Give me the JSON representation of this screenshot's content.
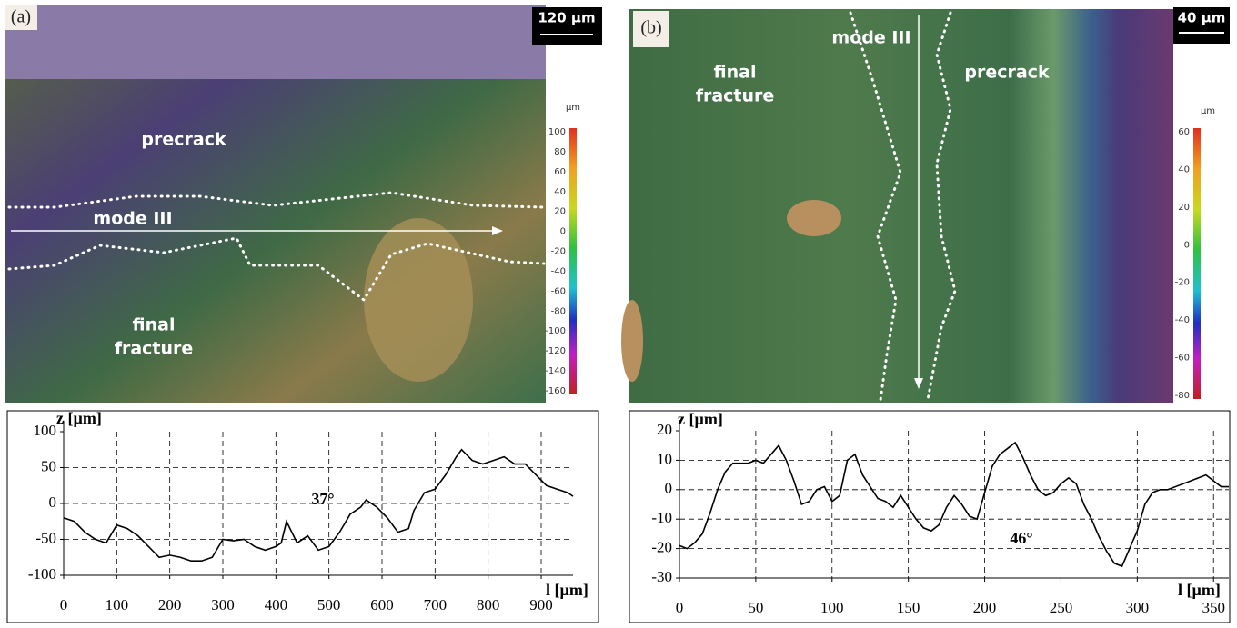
{
  "chart_data": [
    {
      "type": "line",
      "y_label": "z [µm]",
      "x_label": "l [µm]",
      "annotation": "37°",
      "xlim": [
        0,
        960
      ],
      "xticks": [
        0,
        100,
        200,
        300,
        400,
        500,
        600,
        700,
        800,
        900
      ],
      "ylim": [
        -100,
        100
      ],
      "yticks": [
        -100,
        -50,
        0,
        50,
        100
      ],
      "grid": true,
      "series": [
        {
          "color": "#000000",
          "x": [
            0,
            20,
            40,
            60,
            80,
            100,
            120,
            140,
            160,
            180,
            200,
            220,
            240,
            260,
            280,
            300,
            320,
            340,
            360,
            380,
            400,
            410,
            420,
            440,
            460,
            480,
            500,
            520,
            540,
            560,
            570,
            590,
            610,
            630,
            650,
            660,
            680,
            700,
            720,
            740,
            750,
            770,
            790,
            810,
            830,
            850,
            870,
            890,
            910,
            930,
            950,
            960
          ],
          "values": [
            -20,
            -25,
            -40,
            -50,
            -55,
            -30,
            -35,
            -45,
            -60,
            -75,
            -72,
            -75,
            -80,
            -80,
            -75,
            -50,
            -52,
            -50,
            -60,
            -65,
            -60,
            -55,
            -25,
            -55,
            -45,
            -65,
            -60,
            -40,
            -15,
            -5,
            5,
            -5,
            -20,
            -40,
            -35,
            -10,
            15,
            20,
            40,
            65,
            75,
            60,
            55,
            60,
            65,
            55,
            55,
            40,
            25,
            20,
            15,
            10
          ]
        }
      ]
    },
    {
      "type": "line",
      "y_label": "z [µm]",
      "x_label": "l [µm]",
      "annotation": "46°",
      "xlim": [
        0,
        360
      ],
      "xticks": [
        0,
        50,
        100,
        150,
        200,
        250,
        300,
        350
      ],
      "ylim": [
        -30,
        20
      ],
      "yticks": [
        -30,
        -20,
        -10,
        0,
        10,
        20
      ],
      "grid": true,
      "series": [
        {
          "color": "#000000",
          "x": [
            0,
            5,
            10,
            15,
            20,
            25,
            30,
            35,
            40,
            45,
            50,
            55,
            60,
            65,
            70,
            75,
            80,
            85,
            90,
            95,
            100,
            105,
            110,
            115,
            120,
            125,
            130,
            135,
            140,
            145,
            150,
            155,
            160,
            165,
            170,
            175,
            180,
            185,
            190,
            195,
            200,
            205,
            210,
            215,
            220,
            225,
            230,
            235,
            240,
            245,
            250,
            255,
            260,
            265,
            270,
            275,
            280,
            285,
            290,
            295,
            300,
            305,
            310,
            315,
            320,
            325,
            330,
            335,
            340,
            345,
            350,
            355,
            360
          ],
          "values": [
            -19,
            -20,
            -18,
            -15,
            -8,
            0,
            6,
            9,
            9,
            9,
            10,
            9,
            12,
            15,
            10,
            3,
            -5,
            -4,
            0,
            1,
            -4,
            -2,
            10,
            12,
            5,
            1,
            -3,
            -4,
            -6,
            -2,
            -6,
            -10,
            -13,
            -14,
            -12,
            -6,
            -2,
            -5,
            -9,
            -10,
            -1,
            8,
            12,
            14,
            16,
            11,
            5,
            0,
            -2,
            -1,
            2,
            4,
            2,
            -5,
            -10,
            -16,
            -21,
            -25,
            -26,
            -20,
            -14,
            -5,
            -1,
            0,
            0,
            1,
            2,
            3,
            4,
            5,
            3,
            1,
            1
          ]
        }
      ]
    }
  ],
  "images": [
    {
      "panel": "(a)",
      "scale_bar": "120 µm",
      "labels": [
        "precrack",
        "mode III",
        "final",
        "fracture"
      ],
      "colorbar": {
        "unit": "µm",
        "ticks": [
          100,
          80,
          60,
          40,
          20,
          0,
          -20,
          -40,
          -60,
          -80,
          -100,
          -120,
          -140,
          -160
        ]
      }
    },
    {
      "panel": "(b)",
      "scale_bar": "40 µm",
      "labels": [
        "final",
        "fracture",
        "mode III",
        "precrack"
      ],
      "colorbar": {
        "unit": "µm",
        "ticks": [
          60,
          40,
          20,
          0,
          -20,
          -40,
          -60,
          -80
        ]
      }
    }
  ]
}
